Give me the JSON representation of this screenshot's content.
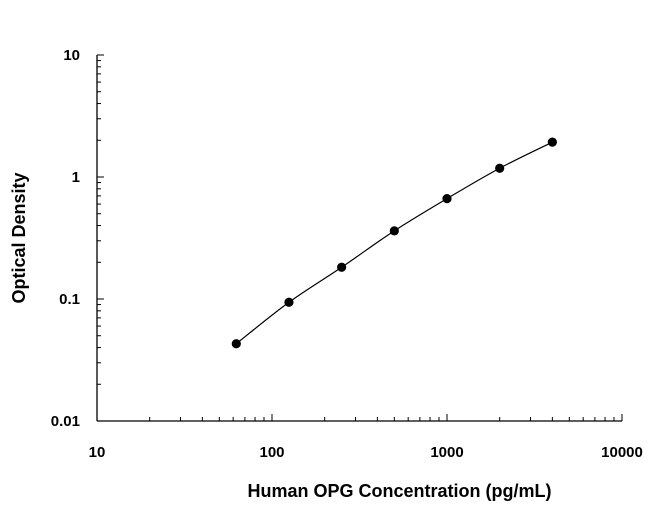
{
  "chart_data": {
    "type": "scatter",
    "title": "",
    "xlabel": "Human OPG Concentration (pg/mL)",
    "ylabel": "Optical Density",
    "x_scale": "log",
    "y_scale": "log",
    "xlim": [
      10,
      10000
    ],
    "ylim": [
      0.01,
      10
    ],
    "x_ticks": [
      "10",
      "100",
      "1000",
      "10000"
    ],
    "y_ticks": [
      "0.01",
      "0.1",
      "1",
      "10"
    ],
    "grid": false,
    "legend": "none",
    "fit_curve": true,
    "series": [
      {
        "x": [
          62.5,
          125,
          250,
          500,
          1000,
          2000,
          4000
        ],
        "y": [
          0.043,
          0.094,
          0.182,
          0.362,
          0.665,
          1.18,
          1.93
        ]
      }
    ]
  }
}
